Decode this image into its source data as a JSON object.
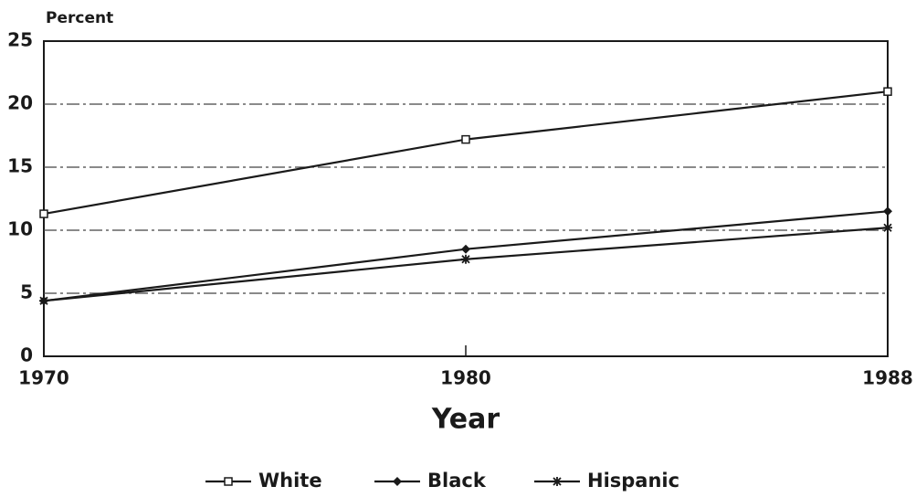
{
  "chart_data": {
    "type": "line",
    "y_label": "Percent",
    "x_label": "Year",
    "categories": [
      "1970",
      "1980",
      "1988"
    ],
    "series": [
      {
        "name": "White",
        "color": "#1a1a1a",
        "marker": "square",
        "values": [
          11.3,
          17.2,
          21.0
        ]
      },
      {
        "name": "Black",
        "color": "#1a1a1a",
        "marker": "diamond",
        "values": [
          4.4,
          8.5,
          11.5
        ]
      },
      {
        "name": "Hispanic",
        "color": "#1a1a1a",
        "marker": "star",
        "values": [
          4.4,
          7.7,
          10.2
        ]
      }
    ],
    "ylim": [
      0,
      25
    ],
    "yticks": [
      0,
      5,
      10,
      15,
      20,
      25
    ],
    "grid": true,
    "legend": "bottom"
  }
}
